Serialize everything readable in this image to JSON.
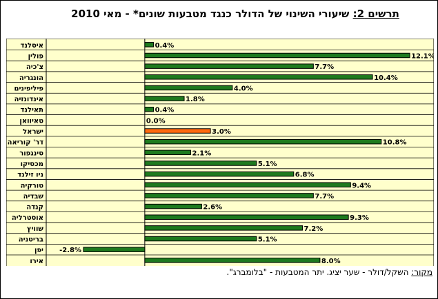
{
  "chart_data": {
    "type": "bar",
    "orientation": "horizontal",
    "title_label": "תרשים 2:",
    "title_text": " שיעורי השינוי של הדולר כנגד מטבעות שונים* - מאי 2010",
    "categories": [
      "איסלנד",
      "פולין",
      "צ'כיה",
      "הונגריה",
      "פיליפינים",
      "אינדונזיה",
      "תאילנד",
      "טאיוואן",
      "ישראל",
      "דר' קוריאה",
      "סינגפור",
      "מכסיקו",
      "ניו זילנד",
      "טורקיה",
      "שבדיה",
      "קנדה",
      "אוסטרליה",
      "שוויץ",
      "בריטניה",
      "יפן",
      "אירו"
    ],
    "values": [
      0.4,
      12.1,
      7.7,
      10.4,
      4.0,
      1.8,
      0.4,
      0.0,
      3.0,
      10.8,
      2.1,
      5.1,
      6.8,
      9.4,
      7.7,
      2.6,
      9.3,
      7.2,
      5.1,
      -2.8,
      8.0
    ],
    "data_labels": [
      "0.4%",
      "12.1%",
      "7.7%",
      "10.4%",
      "4.0%",
      "1.8%",
      "0.4%",
      "0.0%",
      "3.0%",
      "10.8%",
      "2.1%",
      "5.1%",
      "6.8%",
      "9.4%",
      "7.7%",
      "2.6%",
      "9.3%",
      "7.2%",
      "5.1%",
      "-2.8%",
      "8.0%"
    ],
    "highlight_category": "ישראל",
    "xlim": [
      -4.5,
      13.2
    ],
    "grid": true,
    "colors": {
      "bar": "#1e7a1e",
      "highlight": "#ff6a10",
      "plot_bg": "#ffffcc",
      "grid": "#000000"
    }
  },
  "source": {
    "label": "מקור:",
    "text": " השקל/דולר - שער יציג. יתר המטבעות - \"בלומברג\"."
  }
}
